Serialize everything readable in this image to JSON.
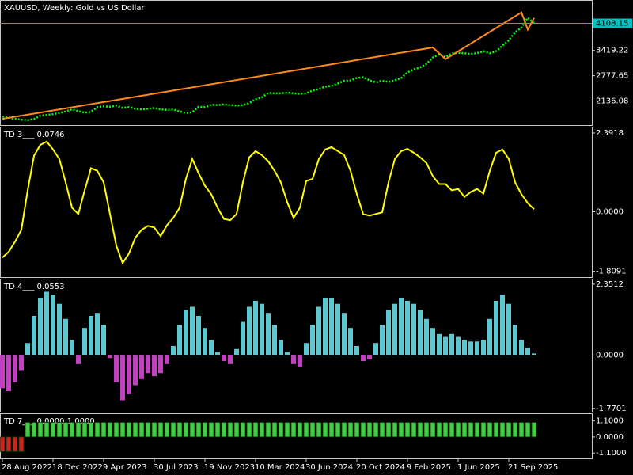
{
  "chart_data": [
    {
      "type": "line",
      "title": "XAUUSD, Weekly:  Gold vs US Dollar",
      "categories": [
        "28 Aug 2022",
        null,
        null,
        null,
        null,
        null,
        null,
        null,
        "18 Dec 2022",
        null,
        null,
        null,
        null,
        null,
        null,
        null,
        "9 Apr 2023",
        null,
        null,
        null,
        null,
        null,
        null,
        null,
        "30 Jul 2023",
        null,
        null,
        null,
        null,
        null,
        null,
        null,
        "19 Nov 2023",
        null,
        null,
        null,
        null,
        null,
        null,
        null,
        "10 Mar 2024",
        null,
        null,
        null,
        null,
        null,
        null,
        null,
        "30 Jun 2024",
        null,
        null,
        null,
        null,
        null,
        null,
        null,
        "20 Oct 2024",
        null,
        null,
        null,
        null,
        null,
        null,
        null,
        "9 Feb 2025",
        null,
        null,
        null,
        null,
        null,
        null,
        null,
        "1 Jun 2025",
        null,
        null,
        null,
        null,
        null,
        null,
        null,
        "21 Sep 2025",
        null,
        null,
        null,
        null
      ],
      "series": [
        {
          "color": "#00ff00",
          "values": [
            1740,
            1710,
            1680,
            1660,
            1650,
            1680,
            1760,
            1780,
            1800,
            1830,
            1870,
            1925,
            1880,
            1840,
            1860,
            1980,
            2000,
            1990,
            2020,
            1960,
            1980,
            1940,
            1920,
            1940,
            1960,
            1920,
            1910,
            1920,
            1870,
            1830,
            1850,
            1990,
            1980,
            2040,
            2030,
            2050,
            2030,
            2020,
            2030,
            2080,
            2180,
            2230,
            2340,
            2330,
            2330,
            2350,
            2330,
            2320,
            2330,
            2400,
            2440,
            2500,
            2520,
            2580,
            2650,
            2660,
            2720,
            2740,
            2660,
            2610,
            2650,
            2620,
            2660,
            2720,
            2860,
            2940,
            2990,
            3080,
            3240,
            3320,
            3250,
            3340,
            3360,
            3350,
            3330,
            3350,
            3400,
            3350,
            3400,
            3540,
            3680,
            3880,
            4000,
            4250,
            4110
          ]
        },
        {
          "color": "#ff8c1a",
          "x": [
            0,
            68,
            70,
            82,
            83,
            84
          ],
          "values": [
            1681,
            3495,
            3199,
            4385,
            3950,
            4246
          ]
        }
      ],
      "current": 4108.15,
      "current_color": "#00c0c0",
      "ylim": [
        1523,
        4681
      ],
      "yticks": [
        2136.08,
        2777.65,
        3419.22
      ]
    },
    {
      "type": "line",
      "title": "TD 3___ 0.0746",
      "color": "#ffff00",
      "values": [
        -1.39,
        -1.22,
        -0.91,
        -0.55,
        0.65,
        1.7,
        2.03,
        2.13,
        1.89,
        1.6,
        0.89,
        0.12,
        -0.07,
        0.65,
        1.32,
        1.24,
        0.89,
        -0.07,
        -1.03,
        -1.56,
        -1.27,
        -0.79,
        -0.55,
        -0.43,
        -0.48,
        -0.74,
        -0.41,
        -0.19,
        0.12,
        1.0,
        1.6,
        1.17,
        0.79,
        0.53,
        0.12,
        -0.22,
        -0.26,
        -0.07,
        0.89,
        1.65,
        1.84,
        1.72,
        1.53,
        1.24,
        0.89,
        0.29,
        -0.19,
        0.12,
        0.93,
        1.0,
        1.6,
        1.89,
        1.96,
        1.84,
        1.72,
        1.24,
        0.53,
        -0.07,
        -0.12,
        -0.07,
        -0.02,
        0.89,
        1.6,
        1.84,
        1.91,
        1.79,
        1.65,
        1.48,
        1.08,
        0.84,
        0.84,
        0.65,
        0.69,
        0.45,
        0.6,
        0.69,
        0.55,
        1.24,
        1.79,
        1.89,
        1.6,
        0.89,
        0.53,
        0.26,
        0.0746
      ],
      "ylim": [
        -1.986,
        2.559
      ],
      "yticks": [
        -1.8091,
        {
          "value": 0,
          "label": "0.0000"
        },
        2.3918
      ]
    },
    {
      "type": "bar",
      "title": "TD 4___ 0.0553",
      "color": "#5bc8d0",
      "negative_color": "#c040c0",
      "values": [
        -1.1,
        -1.2,
        -0.9,
        -0.5,
        0.4,
        1.3,
        1.9,
        2.1,
        2.0,
        1.7,
        1.2,
        0.5,
        -0.3,
        0.9,
        1.3,
        1.4,
        1.0,
        -0.1,
        -0.9,
        -1.5,
        -1.3,
        -1.0,
        -0.8,
        -0.6,
        -0.7,
        -0.6,
        -0.3,
        0.3,
        1.0,
        1.5,
        1.6,
        1.3,
        0.9,
        0.5,
        0.1,
        -0.2,
        -0.3,
        0.2,
        1.1,
        1.6,
        1.8,
        1.7,
        1.4,
        1.0,
        0.5,
        0.1,
        -0.3,
        -0.4,
        0.4,
        1.0,
        1.6,
        1.9,
        1.9,
        1.7,
        1.4,
        0.9,
        0.3,
        -0.2,
        -0.15,
        0.4,
        1.0,
        1.5,
        1.7,
        1.9,
        1.8,
        1.7,
        1.5,
        1.2,
        0.9,
        0.7,
        0.6,
        0.7,
        0.6,
        0.5,
        0.45,
        0.45,
        0.5,
        1.2,
        1.8,
        2.0,
        1.7,
        1.0,
        0.5,
        0.25,
        0.0553
      ],
      "ylim": [
        -1.88,
        2.507
      ],
      "yticks": [
        -1.7701,
        {
          "value": 0,
          "label": "0.0000"
        },
        2.3512
      ]
    },
    {
      "type": "bar",
      "title": "TD 7___ 0.0000 1.0000",
      "color": "#44cc44",
      "negative_color": "#cc2222",
      "values": [
        -1,
        -1,
        -1,
        -1,
        1,
        1,
        1,
        1,
        1,
        1,
        1,
        1,
        1,
        1,
        1,
        1,
        1,
        1,
        1,
        1,
        1,
        1,
        1,
        1,
        1,
        1,
        1,
        1,
        1,
        1,
        1,
        1,
        1,
        1,
        1,
        1,
        1,
        1,
        1,
        1,
        1,
        1,
        1,
        1,
        1,
        1,
        1,
        1,
        1,
        1,
        1,
        1,
        1,
        1,
        1,
        1,
        1,
        1,
        1,
        1,
        1,
        1,
        1,
        1,
        1,
        1,
        1,
        1,
        1,
        1,
        1,
        1,
        1,
        1,
        1,
        1,
        1,
        1,
        1,
        1,
        1,
        1,
        1,
        1,
        1
      ],
      "ylim": [
        -1.47,
        1.57
      ],
      "yticks": [
        {
          "value": -1.1,
          "label": "-1.1000"
        },
        {
          "value": 0,
          "label": "0.0000"
        },
        {
          "value": 1.1,
          "label": "1.1000"
        }
      ]
    }
  ]
}
